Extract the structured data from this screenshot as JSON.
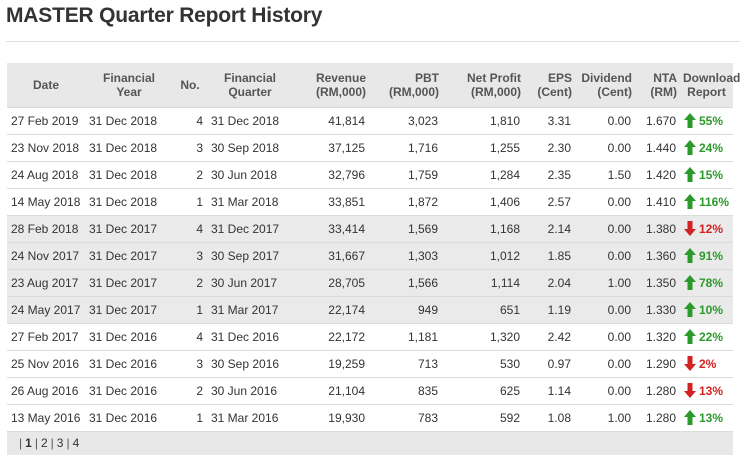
{
  "title": "MASTER Quarter Report History",
  "columns": [
    {
      "key": "date",
      "line1": "Date",
      "line2": ""
    },
    {
      "key": "fy",
      "line1": "Financial",
      "line2": "Year"
    },
    {
      "key": "no",
      "line1": "No.",
      "line2": ""
    },
    {
      "key": "fq",
      "line1": "Financial",
      "line2": "Quarter"
    },
    {
      "key": "rev",
      "line1": "Revenue",
      "line2": "(RM,000)"
    },
    {
      "key": "pbt",
      "line1": "PBT",
      "line2": "(RM,000)"
    },
    {
      "key": "np",
      "line1": "Net Profit",
      "line2": "(RM,000)"
    },
    {
      "key": "eps",
      "line1": "EPS",
      "line2": "(Cent)"
    },
    {
      "key": "div",
      "line1": "Dividend",
      "line2": "(Cent)"
    },
    {
      "key": "nta",
      "line1": "NTA",
      "line2": "(RM)"
    },
    {
      "key": "dl",
      "line1": "Download",
      "line2": "Report"
    }
  ],
  "rows": [
    {
      "date": "27 Feb 2019",
      "fy": "31 Dec 2018",
      "no": "4",
      "fq": "31 Dec 2018",
      "rev": "41,814",
      "pbt": "3,023",
      "np": "1,810",
      "eps": "3.31",
      "div": "0.00",
      "nta": "1.670",
      "dir": "up",
      "pct": "55%"
    },
    {
      "date": "23 Nov 2018",
      "fy": "31 Dec 2018",
      "no": "3",
      "fq": "30 Sep 2018",
      "rev": "37,125",
      "pbt": "1,716",
      "np": "1,255",
      "eps": "2.30",
      "div": "0.00",
      "nta": "1.440",
      "dir": "up",
      "pct": "24%"
    },
    {
      "date": "24 Aug 2018",
      "fy": "31 Dec 2018",
      "no": "2",
      "fq": "30 Jun 2018",
      "rev": "32,796",
      "pbt": "1,759",
      "np": "1,284",
      "eps": "2.35",
      "div": "1.50",
      "nta": "1.420",
      "dir": "up",
      "pct": "15%"
    },
    {
      "date": "14 May 2018",
      "fy": "31 Dec 2018",
      "no": "1",
      "fq": "31 Mar 2018",
      "rev": "33,851",
      "pbt": "1,872",
      "np": "1,406",
      "eps": "2.57",
      "div": "0.00",
      "nta": "1.410",
      "dir": "up",
      "pct": "116%"
    },
    {
      "date": "28 Feb 2018",
      "fy": "31 Dec 2017",
      "no": "4",
      "fq": "31 Dec 2017",
      "rev": "33,414",
      "pbt": "1,569",
      "np": "1,168",
      "eps": "2.14",
      "div": "0.00",
      "nta": "1.380",
      "dir": "down",
      "pct": "12%"
    },
    {
      "date": "24 Nov 2017",
      "fy": "31 Dec 2017",
      "no": "3",
      "fq": "30 Sep 2017",
      "rev": "31,667",
      "pbt": "1,303",
      "np": "1,012",
      "eps": "1.85",
      "div": "0.00",
      "nta": "1.360",
      "dir": "up",
      "pct": "91%"
    },
    {
      "date": "23 Aug 2017",
      "fy": "31 Dec 2017",
      "no": "2",
      "fq": "30 Jun 2017",
      "rev": "28,705",
      "pbt": "1,566",
      "np": "1,114",
      "eps": "2.04",
      "div": "1.00",
      "nta": "1.350",
      "dir": "up",
      "pct": "78%"
    },
    {
      "date": "24 May 2017",
      "fy": "31 Dec 2017",
      "no": "1",
      "fq": "31 Mar 2017",
      "rev": "22,174",
      "pbt": "949",
      "np": "651",
      "eps": "1.19",
      "div": "0.00",
      "nta": "1.330",
      "dir": "up",
      "pct": "10%"
    },
    {
      "date": "27 Feb 2017",
      "fy": "31 Dec 2016",
      "no": "4",
      "fq": "31 Dec 2016",
      "rev": "22,172",
      "pbt": "1,181",
      "np": "1,320",
      "eps": "2.42",
      "div": "0.00",
      "nta": "1.320",
      "dir": "up",
      "pct": "22%"
    },
    {
      "date": "25 Nov 2016",
      "fy": "31 Dec 2016",
      "no": "3",
      "fq": "30 Sep 2016",
      "rev": "19,259",
      "pbt": "713",
      "np": "530",
      "eps": "0.97",
      "div": "0.00",
      "nta": "1.290",
      "dir": "down",
      "pct": "2%"
    },
    {
      "date": "26 Aug 2016",
      "fy": "31 Dec 2016",
      "no": "2",
      "fq": "30 Jun 2016",
      "rev": "21,104",
      "pbt": "835",
      "np": "625",
      "eps": "1.14",
      "div": "0.00",
      "nta": "1.280",
      "dir": "down",
      "pct": "13%"
    },
    {
      "date": "13 May 2016",
      "fy": "31 Dec 2016",
      "no": "1",
      "fq": "31 Mar 2016",
      "rev": "19,930",
      "pbt": "783",
      "np": "592",
      "eps": "1.08",
      "div": "1.00",
      "nta": "1.280",
      "dir": "up",
      "pct": "13%"
    }
  ],
  "shaded_fy": "31 Dec 2017",
  "pagination": {
    "current": "1",
    "pages": [
      "1",
      "2",
      "3",
      "4"
    ]
  },
  "colors": {
    "up": "#2b9a2b",
    "down": "#d32222",
    "header_bg": "#e8e8e8",
    "shade_bg": "#eaeaea"
  },
  "icons": {
    "up": "arrow-up-icon",
    "down": "arrow-down-icon"
  }
}
